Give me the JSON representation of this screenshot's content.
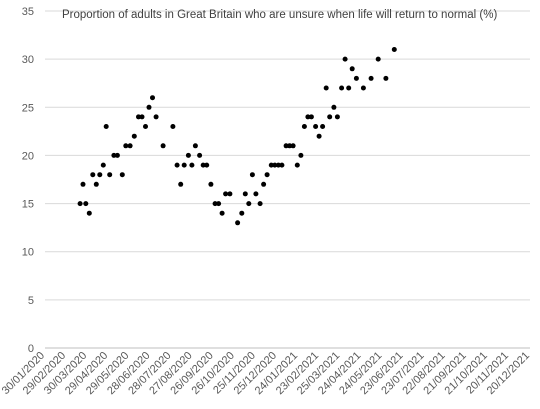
{
  "chart_data": {
    "type": "scatter",
    "title": "Proportion of adults in Great Britain who are unsure when life will return to normal (%)",
    "xlabel": "",
    "ylabel": "",
    "ylim": [
      0,
      35
    ],
    "yticks": [
      "0",
      "5",
      "10",
      "15",
      "20",
      "25",
      "30",
      "35"
    ],
    "xlim": [
      "2020-01-30",
      "2021-12-20"
    ],
    "xticks": [
      "30/01/2020",
      "29/02/2020",
      "30/03/2020",
      "29/04/2020",
      "29/05/2020",
      "28/06/2020",
      "28/07/2020",
      "27/08/2020",
      "26/09/2020",
      "26/10/2020",
      "25/11/2020",
      "25/12/2020",
      "24/01/2021",
      "23/02/2021",
      "25/03/2021",
      "24/04/2021",
      "24/05/2021",
      "23/06/2021",
      "23/07/2021",
      "22/08/2021",
      "21/09/2021",
      "21/10/2021",
      "20/11/2021",
      "20/12/2021"
    ],
    "grid": "horizontal",
    "legend": "none",
    "marker_color": "#000000",
    "points": [
      {
        "x": "2020-03-20",
        "y": 15
      },
      {
        "x": "2020-03-24",
        "y": 17
      },
      {
        "x": "2020-03-28",
        "y": 15
      },
      {
        "x": "2020-04-02",
        "y": 14
      },
      {
        "x": "2020-04-07",
        "y": 18
      },
      {
        "x": "2020-04-12",
        "y": 17
      },
      {
        "x": "2020-04-17",
        "y": 18
      },
      {
        "x": "2020-04-22",
        "y": 19
      },
      {
        "x": "2020-04-26",
        "y": 23
      },
      {
        "x": "2020-05-01",
        "y": 18
      },
      {
        "x": "2020-05-07",
        "y": 20
      },
      {
        "x": "2020-05-12",
        "y": 20
      },
      {
        "x": "2020-05-19",
        "y": 18
      },
      {
        "x": "2020-05-24",
        "y": 21
      },
      {
        "x": "2020-05-30",
        "y": 21
      },
      {
        "x": "2020-06-05",
        "y": 22
      },
      {
        "x": "2020-06-11",
        "y": 24
      },
      {
        "x": "2020-06-16",
        "y": 24
      },
      {
        "x": "2020-06-21",
        "y": 23
      },
      {
        "x": "2020-06-26",
        "y": 25
      },
      {
        "x": "2020-07-01",
        "y": 26
      },
      {
        "x": "2020-07-06",
        "y": 24
      },
      {
        "x": "2020-07-16",
        "y": 21
      },
      {
        "x": "2020-07-30",
        "y": 23
      },
      {
        "x": "2020-08-05",
        "y": 19
      },
      {
        "x": "2020-08-10",
        "y": 17
      },
      {
        "x": "2020-08-15",
        "y": 19
      },
      {
        "x": "2020-08-21",
        "y": 20
      },
      {
        "x": "2020-08-26",
        "y": 19
      },
      {
        "x": "2020-08-31",
        "y": 21
      },
      {
        "x": "2020-09-06",
        "y": 20
      },
      {
        "x": "2020-09-11",
        "y": 19
      },
      {
        "x": "2020-09-16",
        "y": 19
      },
      {
        "x": "2020-09-22",
        "y": 17
      },
      {
        "x": "2020-09-28",
        "y": 15
      },
      {
        "x": "2020-10-03",
        "y": 15
      },
      {
        "x": "2020-10-08",
        "y": 14
      },
      {
        "x": "2020-10-13",
        "y": 16
      },
      {
        "x": "2020-10-19",
        "y": 16
      },
      {
        "x": "2020-10-30",
        "y": 13
      },
      {
        "x": "2020-11-05",
        "y": 14
      },
      {
        "x": "2020-11-10",
        "y": 16
      },
      {
        "x": "2020-11-15",
        "y": 15
      },
      {
        "x": "2020-11-20",
        "y": 18
      },
      {
        "x": "2020-11-25",
        "y": 16
      },
      {
        "x": "2020-12-01",
        "y": 15
      },
      {
        "x": "2020-12-06",
        "y": 17
      },
      {
        "x": "2020-12-11",
        "y": 18
      },
      {
        "x": "2020-12-17",
        "y": 19
      },
      {
        "x": "2020-12-22",
        "y": 19
      },
      {
        "x": "2020-12-27",
        "y": 19
      },
      {
        "x": "2021-01-01",
        "y": 19
      },
      {
        "x": "2021-01-07",
        "y": 21
      },
      {
        "x": "2021-01-12",
        "y": 21
      },
      {
        "x": "2021-01-17",
        "y": 21
      },
      {
        "x": "2021-01-23",
        "y": 19
      },
      {
        "x": "2021-01-28",
        "y": 20
      },
      {
        "x": "2021-02-02",
        "y": 23
      },
      {
        "x": "2021-02-07",
        "y": 24
      },
      {
        "x": "2021-02-12",
        "y": 24
      },
      {
        "x": "2021-02-18",
        "y": 23
      },
      {
        "x": "2021-02-23",
        "y": 22
      },
      {
        "x": "2021-02-28",
        "y": 23
      },
      {
        "x": "2021-03-05",
        "y": 27
      },
      {
        "x": "2021-03-10",
        "y": 24
      },
      {
        "x": "2021-03-16",
        "y": 25
      },
      {
        "x": "2021-03-21",
        "y": 24
      },
      {
        "x": "2021-03-27",
        "y": 27
      },
      {
        "x": "2021-04-01",
        "y": 30
      },
      {
        "x": "2021-04-06",
        "y": 27
      },
      {
        "x": "2021-04-11",
        "y": 29
      },
      {
        "x": "2021-04-17",
        "y": 28
      },
      {
        "x": "2021-04-27",
        "y": 27
      },
      {
        "x": "2021-05-08",
        "y": 28
      },
      {
        "x": "2021-05-18",
        "y": 30
      },
      {
        "x": "2021-05-29",
        "y": 28
      },
      {
        "x": "2021-06-10",
        "y": 31
      }
    ]
  }
}
